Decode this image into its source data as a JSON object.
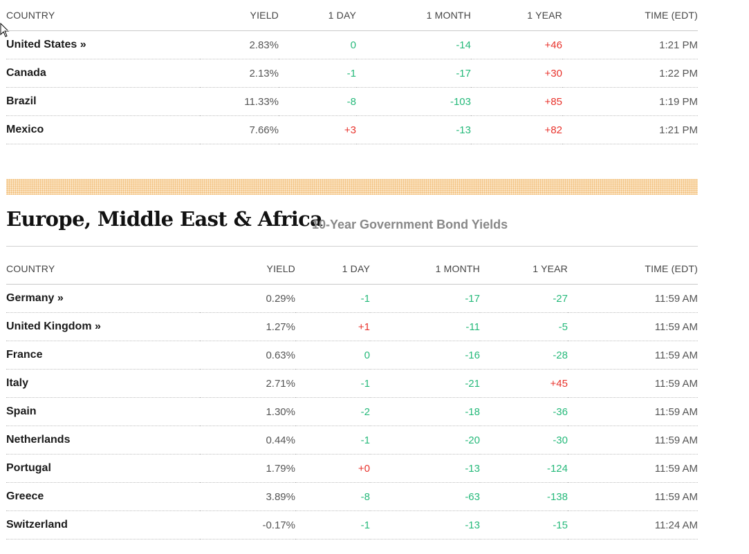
{
  "americas": {
    "columns": {
      "country": "COUNTRY",
      "yield": "YIELD",
      "day": "1 DAY",
      "month": "1 MONTH",
      "year": "1 YEAR",
      "time": "TIME (EDT)"
    },
    "rows": [
      {
        "country": "United States »",
        "link": true,
        "yield": "2.83%",
        "day": "0",
        "day_dir": "down",
        "month": "-14",
        "month_dir": "down",
        "year": "+46",
        "year_dir": "up",
        "time": "1:21 PM"
      },
      {
        "country": "Canada",
        "link": false,
        "yield": "2.13%",
        "day": "-1",
        "day_dir": "down",
        "month": "-17",
        "month_dir": "down",
        "year": "+30",
        "year_dir": "up",
        "time": "1:22 PM"
      },
      {
        "country": "Brazil",
        "link": false,
        "yield": "11.33%",
        "day": "-8",
        "day_dir": "down",
        "month": "-103",
        "month_dir": "down",
        "year": "+85",
        "year_dir": "up",
        "time": "1:19 PM"
      },
      {
        "country": "Mexico",
        "link": false,
        "yield": "7.66%",
        "day": "+3",
        "day_dir": "up",
        "month": "-13",
        "month_dir": "down",
        "year": "+82",
        "year_dir": "up",
        "time": "1:21 PM"
      }
    ]
  },
  "emea": {
    "title": "Europe, Middle East & Africa",
    "subtitle": "10-Year Government Bond Yields",
    "columns": {
      "country": "COUNTRY",
      "yield": "YIELD",
      "day": "1 DAY",
      "month": "1 MONTH",
      "year": "1 YEAR",
      "time": "TIME (EDT)"
    },
    "rows": [
      {
        "country": "Germany »",
        "link": true,
        "yield": "0.29%",
        "day": "-1",
        "day_dir": "down",
        "month": "-17",
        "month_dir": "down",
        "year": "-27",
        "year_dir": "down",
        "time": "11:59 AM"
      },
      {
        "country": "United Kingdom »",
        "link": true,
        "yield": "1.27%",
        "day": "+1",
        "day_dir": "up",
        "month": "-11",
        "month_dir": "down",
        "year": "-5",
        "year_dir": "down",
        "time": "11:59 AM"
      },
      {
        "country": "France",
        "link": false,
        "yield": "0.63%",
        "day": "0",
        "day_dir": "down",
        "month": "-16",
        "month_dir": "down",
        "year": "-28",
        "year_dir": "down",
        "time": "11:59 AM"
      },
      {
        "country": "Italy",
        "link": false,
        "yield": "2.71%",
        "day": "-1",
        "day_dir": "down",
        "month": "-21",
        "month_dir": "down",
        "year": "+45",
        "year_dir": "up",
        "time": "11:59 AM"
      },
      {
        "country": "Spain",
        "link": false,
        "yield": "1.30%",
        "day": "-2",
        "day_dir": "down",
        "month": "-18",
        "month_dir": "down",
        "year": "-36",
        "year_dir": "down",
        "time": "11:59 AM"
      },
      {
        "country": "Netherlands",
        "link": false,
        "yield": "0.44%",
        "day": "-1",
        "day_dir": "down",
        "month": "-20",
        "month_dir": "down",
        "year": "-30",
        "year_dir": "down",
        "time": "11:59 AM"
      },
      {
        "country": "Portugal",
        "link": false,
        "yield": "1.79%",
        "day": "+0",
        "day_dir": "up",
        "month": "-13",
        "month_dir": "down",
        "year": "-124",
        "year_dir": "down",
        "time": "11:59 AM"
      },
      {
        "country": "Greece",
        "link": false,
        "yield": "3.89%",
        "day": "-8",
        "day_dir": "down",
        "month": "-63",
        "month_dir": "down",
        "year": "-138",
        "year_dir": "down",
        "time": "11:59 AM"
      },
      {
        "country": "Switzerland",
        "link": false,
        "yield": "-0.17%",
        "day": "-1",
        "day_dir": "down",
        "month": "-13",
        "month_dir": "down",
        "year": "-15",
        "year_dir": "down",
        "time": "11:24 AM"
      }
    ]
  },
  "colors": {
    "up": "#e8322b",
    "down": "#25b97a"
  },
  "icons": {
    "cursor": "mouse-pointer-icon"
  }
}
